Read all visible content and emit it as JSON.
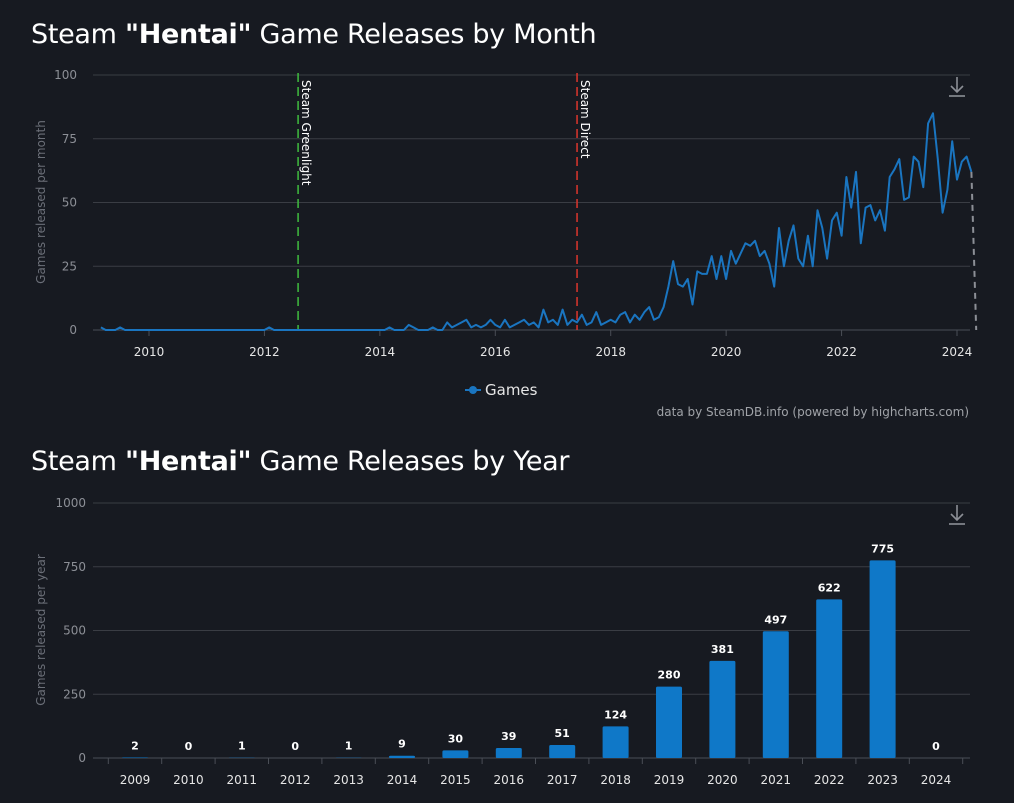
{
  "charts": [
    {
      "title_pre": "Steam ",
      "title_bold": "\"Hentai\"",
      "title_post": " Game Releases by Month",
      "export_icon": "download-icon"
    },
    {
      "title_pre": "Steam ",
      "title_bold": "\"Hentai\"",
      "title_post": " Game Releases by Year",
      "export_icon": "download-icon"
    }
  ],
  "credit": "data by SteamDB.info (powered by highcharts.com)",
  "colors": {
    "background": "#171a21",
    "series": "#1a75c0",
    "bar": "#0f78c8",
    "greenlight": "#3db33d",
    "direct": "#d0342c",
    "projection": "#8c8f96"
  },
  "chart_data": [
    {
      "type": "line",
      "ylabel": "Games released per month",
      "ylim": [
        0,
        100
      ],
      "yticks": [
        0,
        25,
        50,
        75,
        100
      ],
      "xticks": [
        "2010",
        "2012",
        "2014",
        "2016",
        "2018",
        "2020",
        "2022",
        "2024"
      ],
      "x_start": "2009-03",
      "grid": true,
      "legend": {
        "position": "bottom-center",
        "label": "Games"
      },
      "plot_lines": [
        {
          "label": "Steam Greenlight",
          "x": "2012-08",
          "color": "#3db33d"
        },
        {
          "label": "Steam Direct",
          "x": "2017-06",
          "color": "#d0342c"
        }
      ],
      "series": [
        {
          "name": "Games",
          "values": [
            1,
            0,
            0,
            0,
            1,
            0,
            0,
            0,
            0,
            0,
            0,
            0,
            0,
            0,
            0,
            0,
            0,
            0,
            0,
            0,
            0,
            0,
            0,
            0,
            0,
            0,
            0,
            0,
            0,
            0,
            0,
            0,
            0,
            0,
            0,
            1,
            0,
            0,
            0,
            0,
            0,
            0,
            0,
            0,
            0,
            0,
            0,
            0,
            0,
            0,
            0,
            0,
            0,
            0,
            0,
            0,
            0,
            0,
            0,
            0,
            1,
            0,
            0,
            0,
            2,
            1,
            0,
            0,
            0,
            1,
            0,
            0,
            3,
            1,
            2,
            3,
            4,
            1,
            2,
            1,
            2,
            4,
            2,
            1,
            4,
            1,
            2,
            3,
            4,
            2,
            3,
            1,
            8,
            3,
            4,
            2,
            8,
            2,
            4,
            3,
            6,
            2,
            3,
            7,
            2,
            3,
            4,
            3,
            6,
            7,
            3,
            6,
            4,
            7,
            9,
            4,
            5,
            9,
            17,
            27,
            18,
            17,
            20,
            10,
            23,
            22,
            22,
            29,
            20,
            29,
            20,
            31,
            26,
            30,
            34,
            33,
            35,
            29,
            31,
            26,
            17,
            40,
            25,
            35,
            41,
            28,
            25,
            37,
            25,
            47,
            40,
            28,
            43,
            46,
            37,
            60,
            48,
            62,
            34,
            48,
            49,
            43,
            47,
            39,
            60,
            63,
            67,
            51,
            52,
            68,
            66,
            56,
            81,
            85,
            67,
            46,
            55,
            74,
            59,
            66,
            68,
            62
          ]
        },
        {
          "name": "Projection",
          "values_from_last": [
            62,
            0
          ]
        }
      ]
    },
    {
      "type": "bar",
      "ylabel": "Games released per year",
      "ylim": [
        0,
        1000
      ],
      "yticks": [
        0,
        250,
        500,
        750,
        1000
      ],
      "grid": true,
      "categories": [
        "2009",
        "2010",
        "2011",
        "2012",
        "2013",
        "2014",
        "2015",
        "2016",
        "2017",
        "2018",
        "2019",
        "2020",
        "2021",
        "2022",
        "2023",
        "2024"
      ],
      "values": [
        2,
        0,
        1,
        0,
        1,
        9,
        30,
        39,
        51,
        124,
        280,
        381,
        497,
        622,
        775,
        0
      ]
    }
  ]
}
